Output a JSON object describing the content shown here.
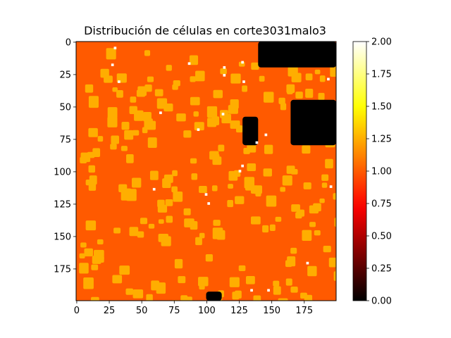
{
  "chart_data": {
    "type": "heatmap",
    "title": "Distribución de células en corte3031malo3",
    "xlabel": "",
    "ylabel": "",
    "colormap": "hot",
    "shape": [
      200,
      200
    ],
    "xlim": [
      0,
      200
    ],
    "ylim": [
      200,
      0
    ],
    "xticks": [
      "0",
      "25",
      "50",
      "75",
      "100",
      "125",
      "150",
      "175"
    ],
    "yticks": [
      "0",
      "25",
      "50",
      "75",
      "100",
      "125",
      "150",
      "175"
    ],
    "value_range": [
      0.0,
      2.0
    ],
    "colorbar": {
      "ticks": [
        "0.00",
        "0.25",
        "0.50",
        "0.75",
        "1.00",
        "1.25",
        "1.50",
        "1.75",
        "2.00"
      ]
    },
    "background_value": 1.0,
    "cell_value": 1.25,
    "highlight_value": 2.0,
    "empty_value": 0.0,
    "dark_regions": [
      {
        "x": [
          140,
          200
        ],
        "y": [
          0,
          20
        ]
      },
      {
        "x": [
          165,
          200
        ],
        "y": [
          45,
          80
        ]
      },
      {
        "x": [
          128,
          140
        ],
        "y": [
          58,
          80
        ]
      },
      {
        "x": [
          100,
          112
        ],
        "y": [
          193,
          200
        ]
      }
    ],
    "highlight_points": [
      {
        "x": 29,
        "y": 4
      },
      {
        "x": 27,
        "y": 17
      },
      {
        "x": 32,
        "y": 30
      },
      {
        "x": 86,
        "y": 16
      },
      {
        "x": 113,
        "y": 19
      },
      {
        "x": 113,
        "y": 25
      },
      {
        "x": 127,
        "y": 15
      },
      {
        "x": 128,
        "y": 30
      },
      {
        "x": 112,
        "y": 55
      },
      {
        "x": 64,
        "y": 54
      },
      {
        "x": 93,
        "y": 67
      },
      {
        "x": 145,
        "y": 71
      },
      {
        "x": 138,
        "y": 77
      },
      {
        "x": 127,
        "y": 95
      },
      {
        "x": 125,
        "y": 99
      },
      {
        "x": 59,
        "y": 113
      },
      {
        "x": 99,
        "y": 117
      },
      {
        "x": 101,
        "y": 124
      },
      {
        "x": 195,
        "y": 111
      },
      {
        "x": 147,
        "y": 191
      },
      {
        "x": 134,
        "y": 191
      },
      {
        "x": 177,
        "y": 170
      },
      {
        "x": 193,
        "y": 28
      }
    ]
  }
}
